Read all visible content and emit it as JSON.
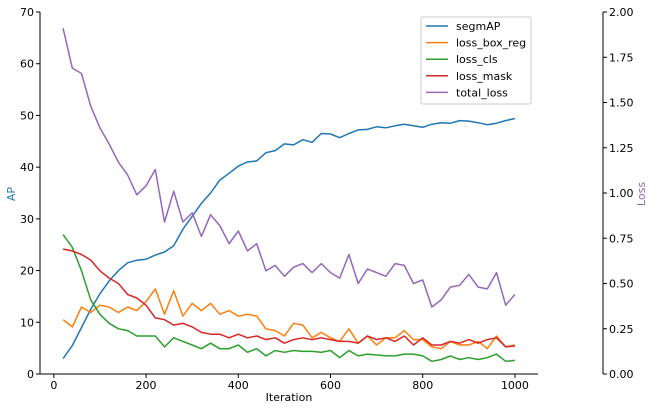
{
  "chart_data": {
    "type": "line",
    "xlabel": "Iteration",
    "ylabel_left": "AP",
    "ylabel_right": "Loss",
    "xlim": [
      -30,
      1050
    ],
    "ylim_left": [
      0,
      70
    ],
    "ylim_right": [
      0,
      2.0
    ],
    "xticks": [
      0,
      200,
      400,
      600,
      800,
      1000
    ],
    "yticks_left": [
      0,
      10,
      20,
      30,
      40,
      50,
      60,
      70
    ],
    "yticks_right": [
      "0.00",
      "0.25",
      "0.50",
      "0.75",
      "1.00",
      "1.25",
      "1.50",
      "1.75",
      "2.00"
    ],
    "grid": false,
    "legend_position": "top-right",
    "x": [
      20,
      40,
      60,
      80,
      100,
      120,
      140,
      160,
      180,
      200,
      220,
      240,
      260,
      280,
      300,
      320,
      340,
      360,
      380,
      400,
      420,
      440,
      460,
      480,
      500,
      520,
      540,
      560,
      580,
      600,
      620,
      640,
      660,
      680,
      700,
      720,
      740,
      760,
      780,
      800,
      820,
      840,
      860,
      880,
      900,
      920,
      940,
      960,
      980,
      1000
    ],
    "series": [
      {
        "name": "segmAP",
        "axis": "left",
        "color": "#1f77b4",
        "values": [
          3.0,
          5.5,
          9.0,
          12.5,
          15.5,
          18.0,
          20.0,
          21.5,
          22.0,
          22.2,
          23.0,
          23.6,
          24.8,
          28.0,
          30.5,
          33.0,
          35.0,
          37.5,
          38.8,
          40.2,
          41.0,
          41.2,
          42.8,
          43.2,
          44.5,
          44.3,
          45.3,
          44.8,
          46.5,
          46.4,
          45.7,
          46.5,
          47.2,
          47.3,
          47.8,
          47.6,
          48.0,
          48.3,
          48.0,
          47.7,
          48.3,
          48.6,
          48.5,
          49.0,
          48.9,
          48.6,
          48.2,
          48.5,
          49.0,
          49.4
        ]
      },
      {
        "name": "loss_box_reg",
        "axis": "right",
        "color": "#ff7f0e",
        "values": [
          0.3,
          0.26,
          0.37,
          0.34,
          0.38,
          0.37,
          0.34,
          0.37,
          0.35,
          0.4,
          0.47,
          0.33,
          0.46,
          0.32,
          0.39,
          0.35,
          0.39,
          0.33,
          0.35,
          0.32,
          0.33,
          0.32,
          0.25,
          0.24,
          0.21,
          0.28,
          0.27,
          0.2,
          0.23,
          0.2,
          0.18,
          0.25,
          0.17,
          0.21,
          0.16,
          0.2,
          0.2,
          0.24,
          0.19,
          0.19,
          0.15,
          0.14,
          0.18,
          0.16,
          0.16,
          0.18,
          0.14,
          0.21,
          0.15,
          0.16
        ]
      },
      {
        "name": "loss_cls",
        "axis": "right",
        "color": "#2ca02c",
        "values": [
          0.77,
          0.7,
          0.57,
          0.41,
          0.33,
          0.28,
          0.25,
          0.24,
          0.21,
          0.21,
          0.21,
          0.15,
          0.2,
          0.18,
          0.16,
          0.14,
          0.17,
          0.14,
          0.14,
          0.16,
          0.12,
          0.14,
          0.1,
          0.13,
          0.12,
          0.13,
          0.125,
          0.125,
          0.12,
          0.13,
          0.09,
          0.13,
          0.1,
          0.11,
          0.105,
          0.1,
          0.1,
          0.11,
          0.11,
          0.1,
          0.07,
          0.08,
          0.1,
          0.08,
          0.09,
          0.08,
          0.09,
          0.11,
          0.07,
          0.075
        ]
      },
      {
        "name": "loss_mask",
        "axis": "right",
        "color": "#d62728",
        "values": [
          0.69,
          0.68,
          0.66,
          0.63,
          0.57,
          0.53,
          0.5,
          0.44,
          0.42,
          0.38,
          0.31,
          0.3,
          0.27,
          0.28,
          0.26,
          0.23,
          0.22,
          0.22,
          0.2,
          0.22,
          0.2,
          0.21,
          0.19,
          0.2,
          0.17,
          0.19,
          0.2,
          0.19,
          0.2,
          0.19,
          0.18,
          0.18,
          0.17,
          0.21,
          0.19,
          0.2,
          0.18,
          0.21,
          0.16,
          0.2,
          0.16,
          0.16,
          0.18,
          0.17,
          0.19,
          0.17,
          0.19,
          0.2,
          0.15,
          0.155
        ]
      },
      {
        "name": "total_loss",
        "axis": "right",
        "color": "#9467bd",
        "values": [
          1.91,
          1.69,
          1.66,
          1.48,
          1.36,
          1.27,
          1.17,
          1.1,
          0.99,
          1.04,
          1.13,
          0.84,
          1.01,
          0.84,
          0.89,
          0.76,
          0.88,
          0.82,
          0.72,
          0.79,
          0.68,
          0.72,
          0.57,
          0.6,
          0.54,
          0.59,
          0.61,
          0.56,
          0.61,
          0.56,
          0.53,
          0.66,
          0.5,
          0.58,
          0.56,
          0.54,
          0.61,
          0.6,
          0.5,
          0.52,
          0.37,
          0.41,
          0.48,
          0.49,
          0.55,
          0.48,
          0.47,
          0.56,
          0.38,
          0.44
        ]
      }
    ]
  }
}
